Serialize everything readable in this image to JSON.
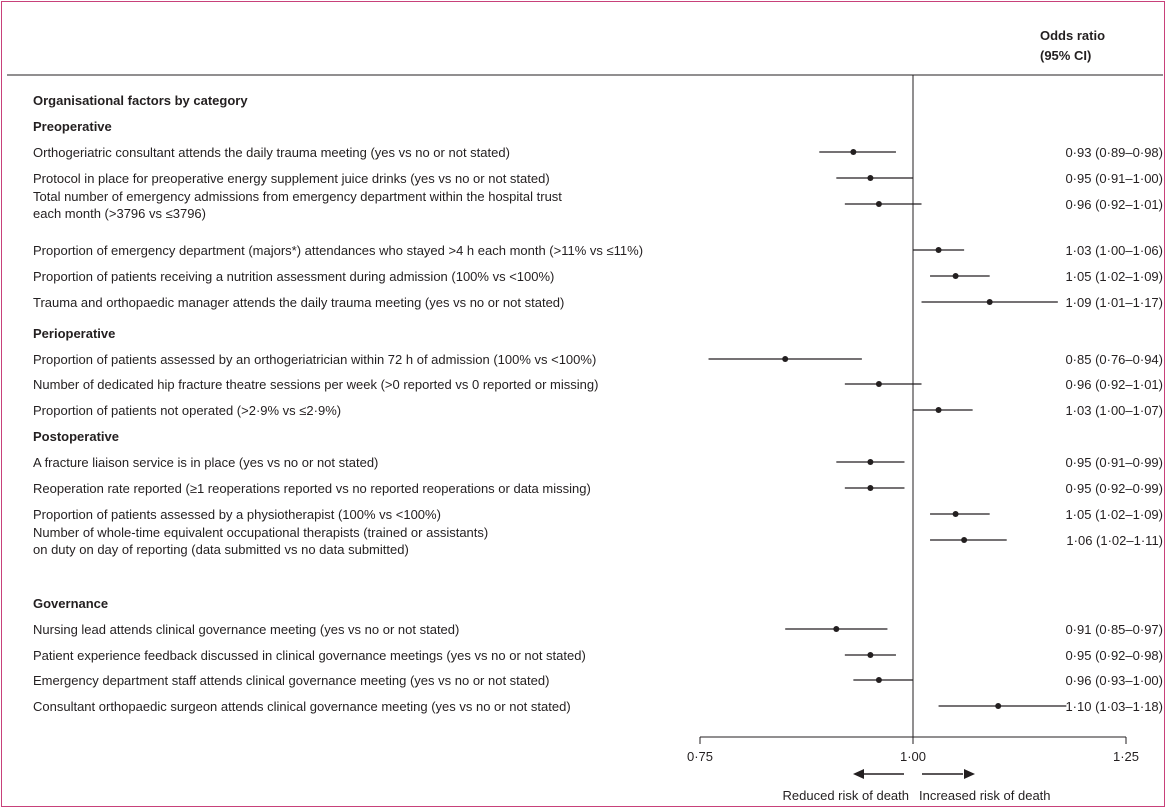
{
  "chart_data": {
    "type": "forest",
    "header": {
      "line1": "Odds ratio",
      "line2": "(95% CI)"
    },
    "section_title": "Organisational factors by category",
    "x_axis": {
      "ticks": [
        0.75,
        1.0,
        1.25
      ],
      "tick_labels": [
        "0·75",
        "1·00",
        "1·25"
      ],
      "range": [
        0.75,
        1.25
      ],
      "reference": 1.0
    },
    "direction": {
      "left": "Reduced risk of death",
      "right": "Increased risk of death"
    },
    "categories": [
      {
        "name": "Preoperative",
        "rows": [
          {
            "lines": [
              "Orthogeriatric consultant attends the daily trauma meeting (yes vs no or not stated)"
            ],
            "or": 0.93,
            "lo": 0.89,
            "hi": 0.98,
            "label": "0·93 (0·89–0·98)"
          },
          {
            "lines": [
              "Protocol in place for preoperative energy supplement juice drinks (yes vs no or not stated)"
            ],
            "or": 0.95,
            "lo": 0.91,
            "hi": 1.0,
            "label": "0·95 (0·91–1·00)"
          },
          {
            "lines": [
              "Total number of emergency admissions from emergency department within the hospital trust",
              "each month (>3796 vs ≤3796)"
            ],
            "or": 0.96,
            "lo": 0.92,
            "hi": 1.01,
            "label": "0·96 (0·92–1·01)"
          },
          {
            "lines": [
              "Proportion of emergency department (majors*) attendances who stayed >4 h each month (>11% vs ≤11%)"
            ],
            "or": 1.03,
            "lo": 1.0,
            "hi": 1.06,
            "label": "1·03 (1·00–1·06)"
          },
          {
            "lines": [
              "Proportion of patients receiving a nutrition assessment during admission (100% vs <100%)"
            ],
            "or": 1.05,
            "lo": 1.02,
            "hi": 1.09,
            "label": "1·05 (1·02–1·09)"
          },
          {
            "lines": [
              "Trauma and orthopaedic manager attends the daily trauma meeting (yes vs no or not stated)"
            ],
            "or": 1.09,
            "lo": 1.01,
            "hi": 1.17,
            "label": "1·09 (1·01–1·17)"
          }
        ]
      },
      {
        "name": "Perioperative",
        "rows": [
          {
            "lines": [
              "Proportion of patients assessed by an orthogeriatrician within 72 h of admission (100% vs <100%)"
            ],
            "or": 0.85,
            "lo": 0.76,
            "hi": 0.94,
            "label": "0·85 (0·76–0·94)"
          },
          {
            "lines": [
              "Number of dedicated hip fracture theatre sessions per week (>0 reported vs 0 reported or missing)"
            ],
            "or": 0.96,
            "lo": 0.92,
            "hi": 1.01,
            "label": "0·96 (0·92–1·01)"
          },
          {
            "lines": [
              "Proportion of patients not operated (>2·9% vs ≤2·9%)"
            ],
            "or": 1.03,
            "lo": 1.0,
            "hi": 1.07,
            "label": "1·03 (1·00–1·07)"
          }
        ]
      },
      {
        "name": "Postoperative",
        "rows": [
          {
            "lines": [
              "A fracture liaison service is in place (yes vs no or not stated)"
            ],
            "or": 0.95,
            "lo": 0.91,
            "hi": 0.99,
            "label": "0·95 (0·91–0·99)"
          },
          {
            "lines": [
              "Reoperation rate reported (≥1 reoperations reported vs no reported reoperations or data missing)"
            ],
            "or": 0.95,
            "lo": 0.92,
            "hi": 0.99,
            "label": "0·95 (0·92–0·99)"
          },
          {
            "lines": [
              "Proportion of patients assessed by a physiotherapist (100% vs <100%)"
            ],
            "or": 1.05,
            "lo": 1.02,
            "hi": 1.09,
            "label": "1·05 (1·02–1·09)"
          },
          {
            "lines": [
              "Number of  whole-time equivalent occupational therapists (trained or assistants)",
              "on duty on day of reporting (data submitted vs no data submitted)"
            ],
            "or": 1.06,
            "lo": 1.02,
            "hi": 1.11,
            "label": "1·06 (1·02–1·11)"
          }
        ]
      },
      {
        "name": "Governance",
        "rows": [
          {
            "lines": [
              "Nursing lead attends clinical governance meeting (yes vs no or not stated)"
            ],
            "or": 0.91,
            "lo": 0.85,
            "hi": 0.97,
            "label": "0·91 (0·85–0·97)"
          },
          {
            "lines": [
              "Patient experience feedback discussed in clinical governance meetings (yes vs no or not stated)"
            ],
            "or": 0.95,
            "lo": 0.92,
            "hi": 0.98,
            "label": "0·95 (0·92–0·98)"
          },
          {
            "lines": [
              "Emergency department staff attends clinical governance meeting (yes vs no or not stated)"
            ],
            "or": 0.96,
            "lo": 0.93,
            "hi": 1.0,
            "label": "0·96 (0·93–1·00)"
          },
          {
            "lines": [
              "Consultant orthopaedic surgeon attends clinical governance meeting (yes vs no or not stated)"
            ],
            "or": 1.1,
            "lo": 1.03,
            "hi": 1.18,
            "label": "1·10 (1·03–1·18)"
          }
        ]
      }
    ]
  }
}
